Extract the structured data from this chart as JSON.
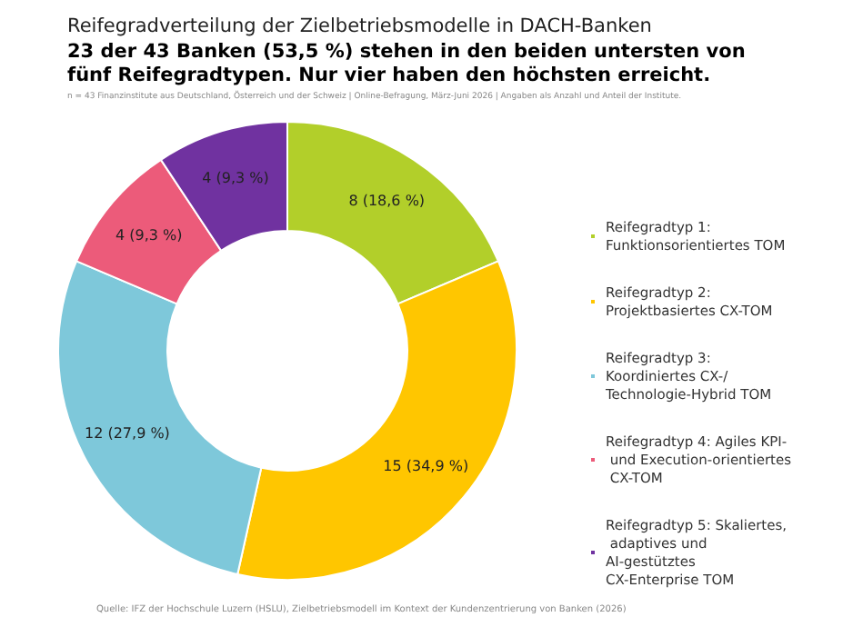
{
  "chart_data": {
    "type": "donut",
    "title": "Reifegradverteilung der Zielbetriebsmodelle in DACH-Banken",
    "subtitle": "23 der 43 Banken (53,5 %) stehen in den beiden untersten von fünf Reifegradtypen. Nur vier haben den höchsten erreicht.",
    "annotations": [
      "n = 43 Finanzinstitute aus Deutschland, Österreich und der Schweiz | Online-Befragung, März-Juni 2026 | Angaben als Anzahl und Anteil der Institute.",
      "Quelle: IFZ der Hochschule Luzern (HSLU), Zielbetriebsmodell im Kontext der Kundenzentrierung von Banken (2026)"
    ],
    "categories": [
      "Reifegradtyp 1: Funktionsorientiertes TOM",
      "Reifegradtyp 2: Projektbasiertes CX-TOM",
      "Reifegradtyp 3: Koordiniertes CX-/Technologie-Hybrid TOM",
      "Reifegradtyp 4: Agiles KPI- und Execution-orientiertes CX-TOM",
      "Reifegradtyp 5: Skaliertes, adaptives und AI-gestütztes CX-Enterprise TOM"
    ],
    "values": [
      8,
      15,
      12,
      4,
      4
    ],
    "value_labels": [
      "8 (18,6 %)",
      "15 (34,9 %)",
      "12 (27,9 %)",
      "4 (9,3 %)",
      "4 (9,3 %)"
    ],
    "colors": [
      "#b2cf2a",
      "#ffc600",
      "#7ec8da",
      "#ec5b7a",
      "#7032a0"
    ],
    "legend": "right"
  }
}
